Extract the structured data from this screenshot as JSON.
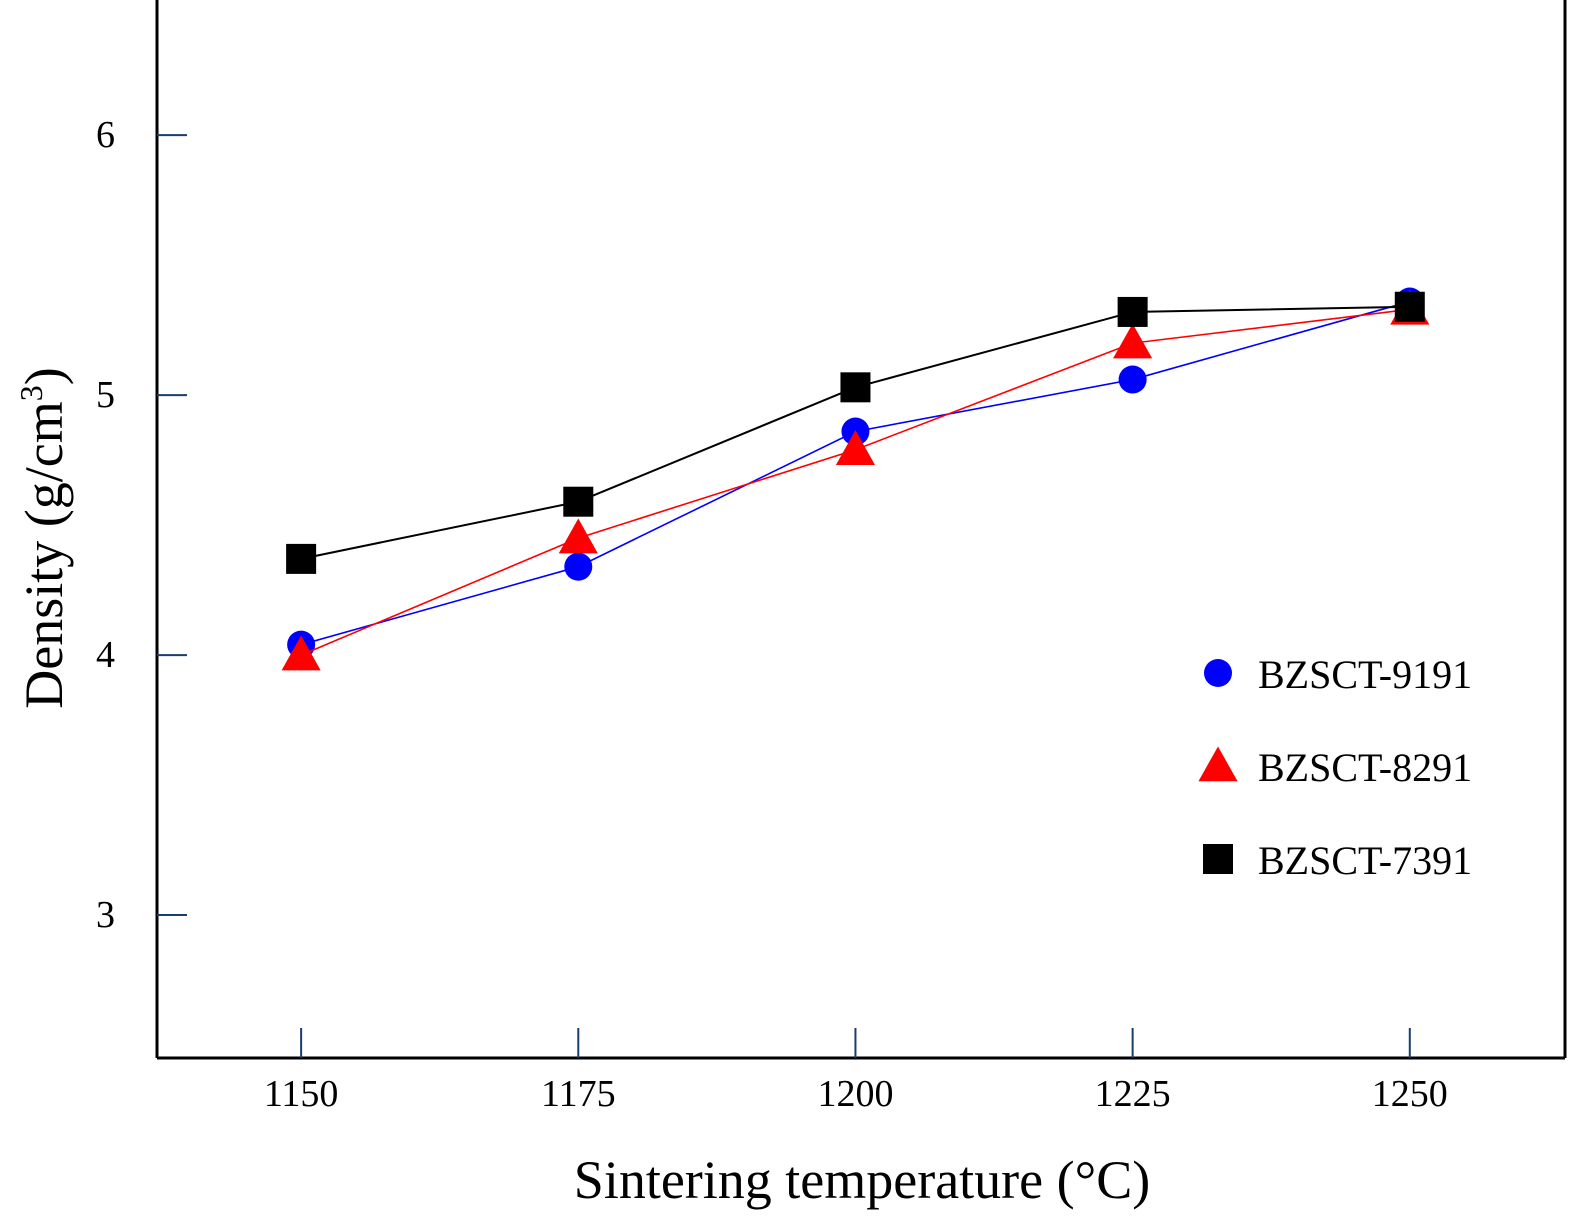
{
  "chart_data": {
    "type": "line",
    "title": "",
    "xlabel": "Sintering temperature (°C)",
    "ylabel": {
      "main": "Density (g/cm",
      "superscript": "3",
      "closing": ")"
    },
    "x": [
      1150,
      1175,
      1200,
      1225,
      1250
    ],
    "xlim": [
      1137,
      1264
    ],
    "ylim": [
      2.45,
      6.52
    ],
    "x_ticks": [
      "1150",
      "1175",
      "1200",
      "1225",
      "1250"
    ],
    "y_ticks": [
      "3",
      "4",
      "5",
      "6"
    ],
    "grid": false,
    "legend_position": "right",
    "series": [
      {
        "name": "BZSCT-9191",
        "marker": "circle",
        "color": "#0000ff",
        "values": [
          4.04,
          4.34,
          4.86,
          5.06,
          5.36
        ]
      },
      {
        "name": "BZSCT-8291",
        "marker": "triangle",
        "color": "#ff0000",
        "values": [
          4.0,
          4.45,
          4.79,
          5.2,
          5.33
        ]
      },
      {
        "name": "BZSCT-7391",
        "marker": "square",
        "color": "#000000",
        "values": [
          4.37,
          4.59,
          5.03,
          5.32,
          5.34
        ]
      }
    ]
  }
}
